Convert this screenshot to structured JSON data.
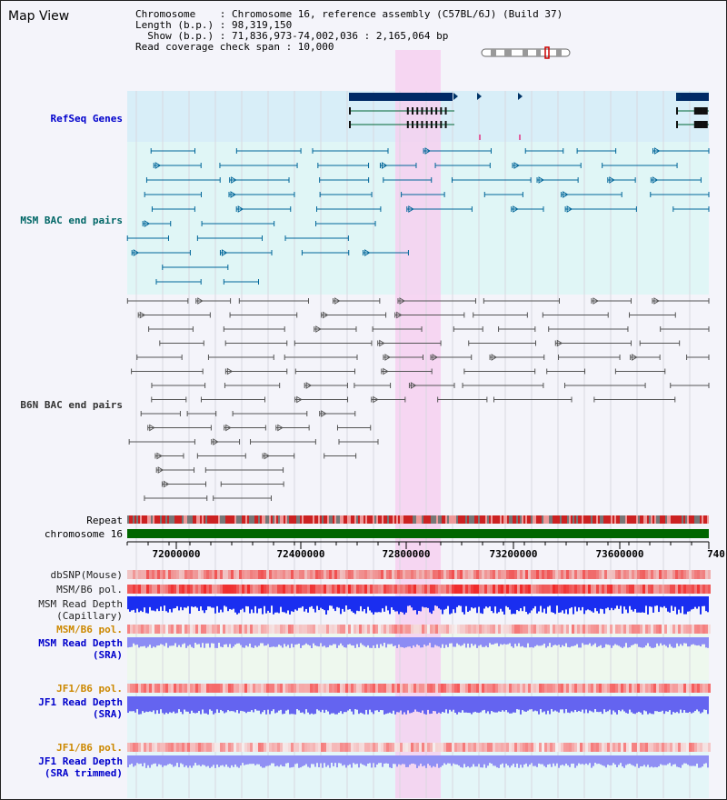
{
  "page": {
    "title": "Map View"
  },
  "info": {
    "line1": "Chromosome    : Chromosome 16, reference assembly (C57BL/6J) (Build 37)",
    "line2": "Length (b.p.) : 98,319,150",
    "line3": "  Show (b.p.) : 71,836,973-74,002,036 : 2,165,064 bp",
    "line4": "Read coverage check span : 10,000"
  },
  "tracks": {
    "refseq": "RefSeq Genes",
    "msm_bac": "MSM BAC end pairs",
    "b6n_bac": "B6N BAC end pairs",
    "repeat": "Repeat",
    "chromosome": "chromosome 16",
    "dbsnp": "dbSNP(Mouse)",
    "msm_b6_pol_1": "MSM/B6 pol.",
    "msm_read_depth_cap_1": "MSM Read Depth",
    "msm_read_depth_cap_2": "(Capillary)",
    "msm_b6_pol_2": "MSM/B6 pol.",
    "msm_read_depth_sra_1": "MSM Read Depth",
    "msm_read_depth_sra_2": "(SRA)",
    "jf1_b6_pol_1": "JF1/B6 pol.",
    "jf1_read_depth_sra_1": "JF1 Read Depth",
    "jf1_read_depth_sra_2": "(SRA)",
    "jf1_b6_pol_2": "JF1/B6 pol.",
    "jf1_read_depth_trim_1": "JF1 Read Depth",
    "jf1_read_depth_trim_2": "(SRA trimmed)"
  },
  "axis": {
    "ticks": [
      "72000000",
      "72400000",
      "72800000",
      "73200000",
      "73600000",
      "740"
    ]
  },
  "colors": {
    "blue_label": "#0000cc",
    "teal_label": "#006666",
    "orange_label": "#cc8800",
    "refseq_bg": "#d8eef8",
    "bac_bg": "#e0f6f6",
    "highlight": "#f6d0f0",
    "chromosome_bar": "#006600",
    "teal_feature": "#006699",
    "gray_feature": "#555555"
  }
}
